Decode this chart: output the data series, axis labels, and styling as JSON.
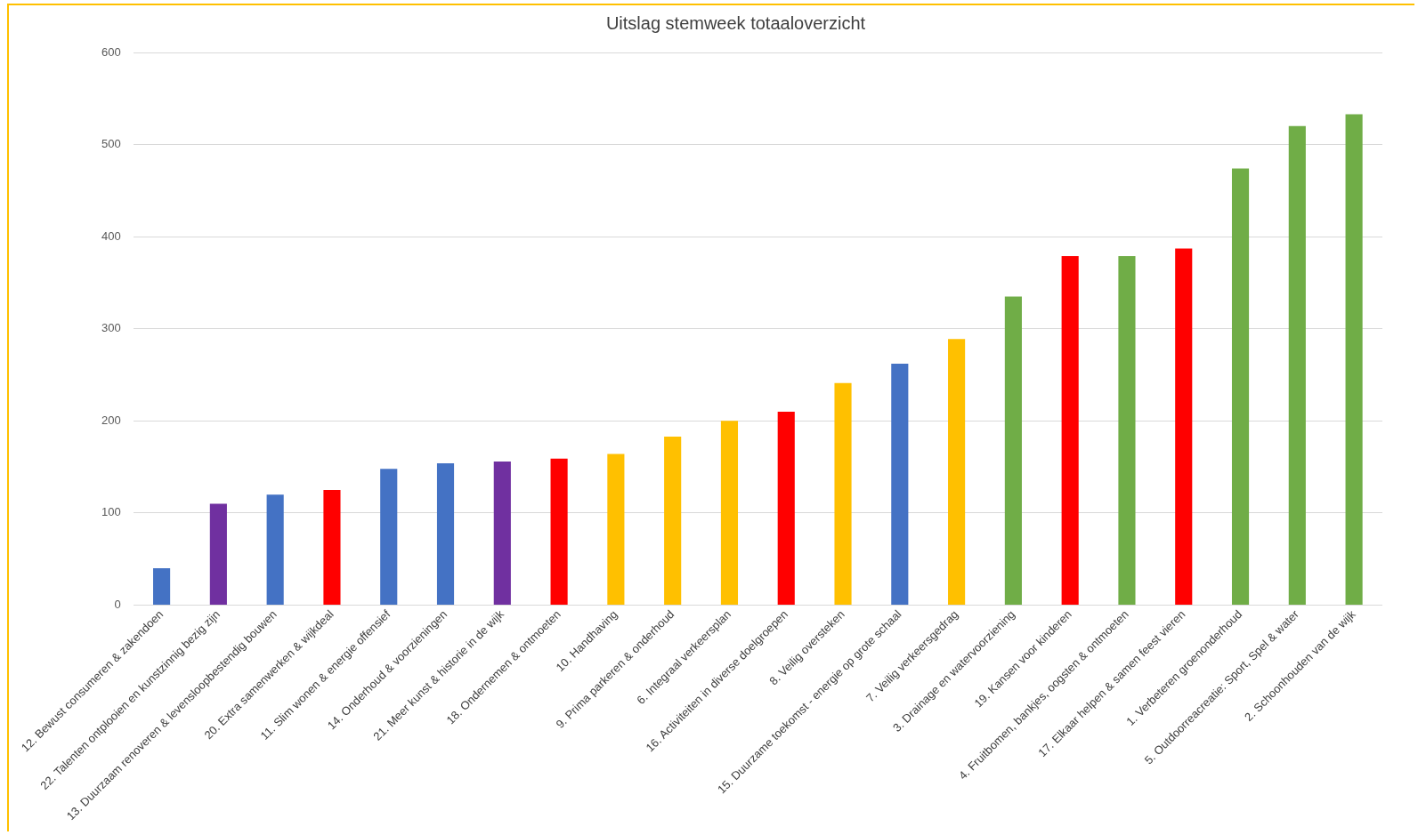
{
  "chart_data": {
    "type": "bar",
    "title": "Uitslag stemweek totaaloverzicht",
    "categories": [
      "12. Bewust consumeren & zakendoen",
      "22. Talenten ontplooien en kunstzinnig bezig zijn",
      "13. Duurzaam renoveren & levensloopbestendig bouwen",
      "20. Extra samenwerken & wijkdeal",
      "11. Slim wonen & energie offensief",
      "14. Onderhoud & voorzieningen",
      "21. Meer kunst & historie in de wijk",
      "18. Ondernemen & ontmoeten",
      "10. Handhaving",
      "9. Prima parkeren & onderhoud",
      "6. Integraal verkeersplan",
      "16. Activiteiten in diverse doelgroepen",
      "8. Veilig oversteken",
      "15. Duurzame toekomst - energie op grote schaal",
      "7. Veilig verkeersgedrag",
      "3. Drainage en watervoorziening",
      "19. Kansen voor kinderen",
      "4. Fruitbomen, bankjes, oogsten & ontmoeten",
      "17. Elkaar helpen & samen feest vieren",
      "1. Verbeteren groenonderhoud",
      "5. Outdoorreacreatie: Sport, Spel & water",
      "2. Schoonhouden van de wijk"
    ],
    "values": [
      40,
      110,
      120,
      125,
      148,
      154,
      156,
      159,
      164,
      183,
      200,
      210,
      241,
      262,
      289,
      335,
      379,
      379,
      387,
      474,
      520,
      533
    ],
    "colors": [
      "#4472c4",
      "#7030a0",
      "#4472c4",
      "#ff0000",
      "#4472c4",
      "#4472c4",
      "#7030a0",
      "#ff0000",
      "#ffc000",
      "#ffc000",
      "#ffc000",
      "#ff0000",
      "#ffc000",
      "#4472c4",
      "#ffc000",
      "#70ad47",
      "#ff0000",
      "#70ad47",
      "#ff0000",
      "#70ad47",
      "#70ad47",
      "#70ad47"
    ],
    "ylim": [
      0,
      600
    ],
    "yticks": [
      0,
      100,
      200,
      300,
      400,
      500,
      600
    ],
    "grid": "y",
    "legend": false
  }
}
